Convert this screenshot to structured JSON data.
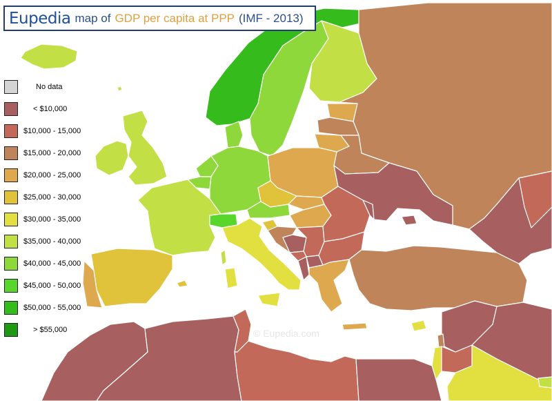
{
  "title": {
    "brand": "Eupedia",
    "prefix": "map of",
    "subject": "GDP per capita at PPP",
    "suffix": "(IMF - 2013)",
    "colors": {
      "brand": "#1f4f9a",
      "prefix": "#2a4f8f",
      "subject": "#e0a040",
      "suffix": "#2a4f8f",
      "border": "#223c6e"
    }
  },
  "legend": [
    {
      "label": "No data",
      "color": "#d4d4d4"
    },
    {
      "label": "< $10,000",
      "color": "#a85f5f"
    },
    {
      "label": "$10,000 - 15,000",
      "color": "#c3695a"
    },
    {
      "label": "$15,000 - 20,000",
      "color": "#c0845a"
    },
    {
      "label": "$20,000 - 25,000",
      "color": "#dea84e"
    },
    {
      "label": "$25,000 - 30,000",
      "color": "#e0c33a"
    },
    {
      "label": "$30,000 - 35,000",
      "color": "#e2e040"
    },
    {
      "label": "$35,000 - 40,000",
      "color": "#c2e046"
    },
    {
      "label": "$40,000 - 45,000",
      "color": "#8fd83b"
    },
    {
      "label": "$45,000 - 50,000",
      "color": "#58d62c"
    },
    {
      "label": "$50,000 - 55,000",
      "color": "#35bb1c"
    },
    {
      "label": "> $55,000",
      "color": "#1e9a12"
    }
  ],
  "watermark": "©  Eupedia.com",
  "colors": {
    "sea": "#ffffff",
    "border": "#ffffff",
    "frame": "#000000"
  }
}
